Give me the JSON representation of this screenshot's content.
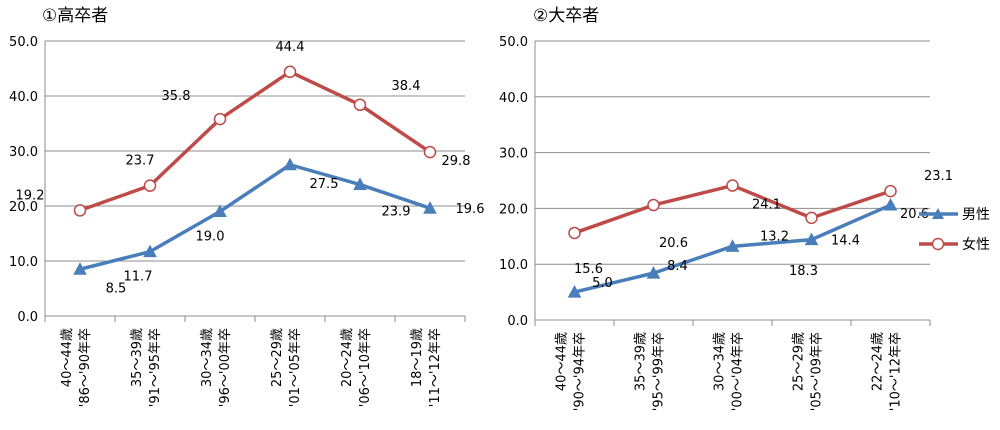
{
  "legend": [
    {
      "name": "男性",
      "color": "#4a7ebb",
      "marker": "triangle"
    },
    {
      "name": "女性",
      "color": "#be4b48",
      "marker": "circle"
    }
  ],
  "chart_data": [
    {
      "type": "line",
      "title": "①高卒者",
      "categories": [
        [
          "40～44歳",
          "'86～'90年卒"
        ],
        [
          "35～39歳",
          "'91～'95年卒"
        ],
        [
          "30～34歳",
          "'96～'00年卒"
        ],
        [
          "25～29歳",
          "'01～'05年卒"
        ],
        [
          "20～24歳",
          "'06～'10年卒"
        ],
        [
          "18～19歳",
          "'11～'12年卒"
        ]
      ],
      "series": [
        {
          "name": "男性",
          "values": [
            8.5,
            11.7,
            19.0,
            27.5,
            23.9,
            19.6
          ]
        },
        {
          "name": "女性",
          "values": [
            19.2,
            23.7,
            35.8,
            44.4,
            38.4,
            29.8
          ]
        }
      ],
      "ylim": [
        0,
        50
      ],
      "yticks": [
        "0.0",
        "10.0",
        "20.0",
        "30.0",
        "40.0",
        "50.0"
      ],
      "grid": true
    },
    {
      "type": "line",
      "title": "②大卒者",
      "categories": [
        [
          "40～44歳",
          "'90～'94年卒"
        ],
        [
          "35～39歳",
          "'95～'99年卒"
        ],
        [
          "30～34歳",
          "'00～'04年卒"
        ],
        [
          "25～29歳",
          "'05～'09年卒"
        ],
        [
          "22～24歳",
          "'10～'12年卒"
        ]
      ],
      "series": [
        {
          "name": "男性",
          "values": [
            5.0,
            8.4,
            13.2,
            14.4,
            20.6
          ]
        },
        {
          "name": "女性",
          "values": [
            15.6,
            20.6,
            24.1,
            18.3,
            23.1
          ]
        }
      ],
      "ylim": [
        0,
        50
      ],
      "yticks": [
        "0.0",
        "10.0",
        "20.0",
        "30.0",
        "40.0",
        "50.0"
      ],
      "grid": true
    }
  ]
}
